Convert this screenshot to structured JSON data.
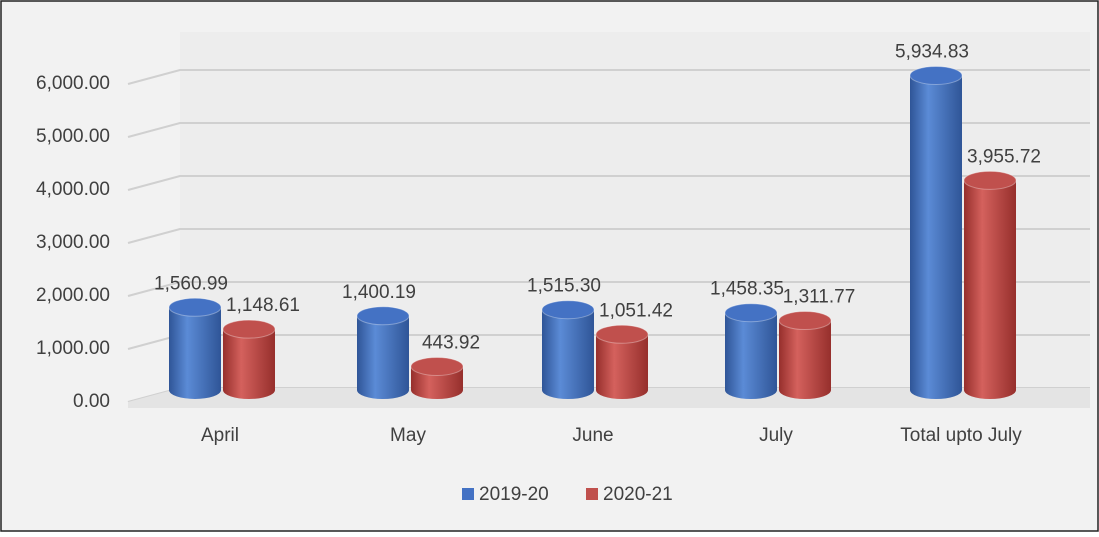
{
  "chart_data": {
    "type": "bar3d",
    "categories": [
      "April",
      "May",
      "June",
      "July",
      "Total upto July"
    ],
    "series": [
      {
        "name": "2019-20",
        "color": "#4472c4",
        "values": [
          1560.99,
          1400.19,
          1515.3,
          1458.35,
          5934.83
        ],
        "value_labels": [
          "1,560.99",
          "1,400.19",
          "1,515.30",
          "1,458.35",
          "5,934.83"
        ]
      },
      {
        "name": "2020-21",
        "color": "#c0504d",
        "values": [
          1148.61,
          443.92,
          1051.42,
          1311.77,
          3955.72
        ],
        "value_labels": [
          "1,148.61",
          "443.92",
          "1,051.42",
          "1,311.77",
          "3,955.72"
        ]
      }
    ],
    "ylim": [
      0,
      6000
    ],
    "yticks": [
      {
        "value": 0,
        "label": "0.00"
      },
      {
        "value": 1000,
        "label": "1,000.00"
      },
      {
        "value": 2000,
        "label": "2,000.00"
      },
      {
        "value": 3000,
        "label": "3,000.00"
      },
      {
        "value": 4000,
        "label": "4,000.00"
      },
      {
        "value": 5000,
        "label": "5,000.00"
      },
      {
        "value": 6000,
        "label": "6,000.00"
      }
    ],
    "grid": true,
    "legend": "bottom"
  }
}
